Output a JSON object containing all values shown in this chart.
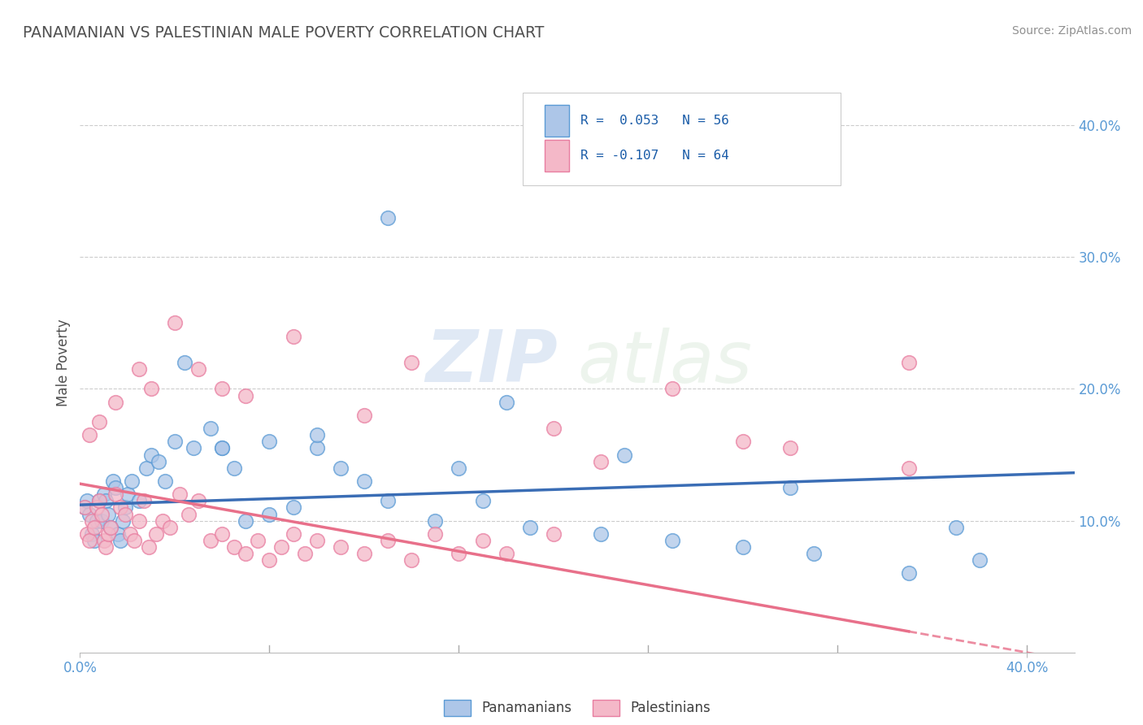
{
  "title": "PANAMANIAN VS PALESTINIAN MALE POVERTY CORRELATION CHART",
  "source": "Source: ZipAtlas.com",
  "ylabel": "Male Poverty",
  "xlim": [
    0.0,
    0.42
  ],
  "ylim": [
    0.0,
    0.44
  ],
  "right_yticks": [
    0.1,
    0.2,
    0.3,
    0.4
  ],
  "right_yticklabels": [
    "10.0%",
    "20.0%",
    "30.0%",
    "40.0%"
  ],
  "blue_color": "#adc6e8",
  "blue_edge_color": "#5b9bd5",
  "pink_color": "#f4b8c8",
  "pink_edge_color": "#e87da0",
  "blue_line_color": "#3a6db5",
  "pink_line_color": "#e8708a",
  "grid_color": "#cccccc",
  "title_color": "#505050",
  "source_color": "#909090",
  "legend_label1": "Panamanians",
  "legend_label2": "Palestinians",
  "watermark_zip": "ZIP",
  "watermark_atlas": "atlas",
  "blue_intercept": 0.112,
  "blue_slope": 0.058,
  "pink_intercept": 0.128,
  "pink_slope": -0.32,
  "blue_scatter_x": [
    0.002,
    0.003,
    0.004,
    0.005,
    0.006,
    0.007,
    0.008,
    0.009,
    0.01,
    0.011,
    0.012,
    0.013,
    0.014,
    0.015,
    0.016,
    0.017,
    0.018,
    0.019,
    0.02,
    0.022,
    0.025,
    0.028,
    0.03,
    0.033,
    0.036,
    0.04,
    0.044,
    0.048,
    0.055,
    0.06,
    0.065,
    0.07,
    0.08,
    0.09,
    0.1,
    0.11,
    0.12,
    0.13,
    0.15,
    0.17,
    0.19,
    0.22,
    0.25,
    0.28,
    0.31,
    0.35,
    0.38,
    0.1,
    0.13,
    0.18,
    0.23,
    0.3,
    0.37,
    0.06,
    0.08,
    0.16
  ],
  "blue_scatter_y": [
    0.11,
    0.115,
    0.105,
    0.09,
    0.085,
    0.1,
    0.115,
    0.1,
    0.12,
    0.115,
    0.105,
    0.095,
    0.13,
    0.125,
    0.09,
    0.085,
    0.1,
    0.11,
    0.12,
    0.13,
    0.115,
    0.14,
    0.15,
    0.145,
    0.13,
    0.16,
    0.22,
    0.155,
    0.17,
    0.155,
    0.14,
    0.1,
    0.105,
    0.11,
    0.155,
    0.14,
    0.13,
    0.115,
    0.1,
    0.115,
    0.095,
    0.09,
    0.085,
    0.08,
    0.075,
    0.06,
    0.07,
    0.165,
    0.33,
    0.19,
    0.15,
    0.125,
    0.095,
    0.155,
    0.16,
    0.14
  ],
  "pink_scatter_x": [
    0.002,
    0.003,
    0.004,
    0.005,
    0.006,
    0.007,
    0.008,
    0.009,
    0.01,
    0.011,
    0.012,
    0.013,
    0.015,
    0.017,
    0.019,
    0.021,
    0.023,
    0.025,
    0.027,
    0.029,
    0.032,
    0.035,
    0.038,
    0.042,
    0.046,
    0.05,
    0.055,
    0.06,
    0.065,
    0.07,
    0.075,
    0.08,
    0.085,
    0.09,
    0.095,
    0.1,
    0.11,
    0.12,
    0.13,
    0.14,
    0.15,
    0.16,
    0.17,
    0.18,
    0.2,
    0.22,
    0.25,
    0.3,
    0.35,
    0.04,
    0.06,
    0.09,
    0.14,
    0.2,
    0.28,
    0.35,
    0.12,
    0.07,
    0.05,
    0.03,
    0.025,
    0.015,
    0.008,
    0.004
  ],
  "pink_scatter_y": [
    0.11,
    0.09,
    0.085,
    0.1,
    0.095,
    0.11,
    0.115,
    0.105,
    0.085,
    0.08,
    0.09,
    0.095,
    0.12,
    0.11,
    0.105,
    0.09,
    0.085,
    0.1,
    0.115,
    0.08,
    0.09,
    0.1,
    0.095,
    0.12,
    0.105,
    0.115,
    0.085,
    0.09,
    0.08,
    0.075,
    0.085,
    0.07,
    0.08,
    0.09,
    0.075,
    0.085,
    0.08,
    0.075,
    0.085,
    0.07,
    0.09,
    0.075,
    0.085,
    0.075,
    0.09,
    0.145,
    0.2,
    0.155,
    0.22,
    0.25,
    0.2,
    0.24,
    0.22,
    0.17,
    0.16,
    0.14,
    0.18,
    0.195,
    0.215,
    0.2,
    0.215,
    0.19,
    0.175,
    0.165
  ]
}
